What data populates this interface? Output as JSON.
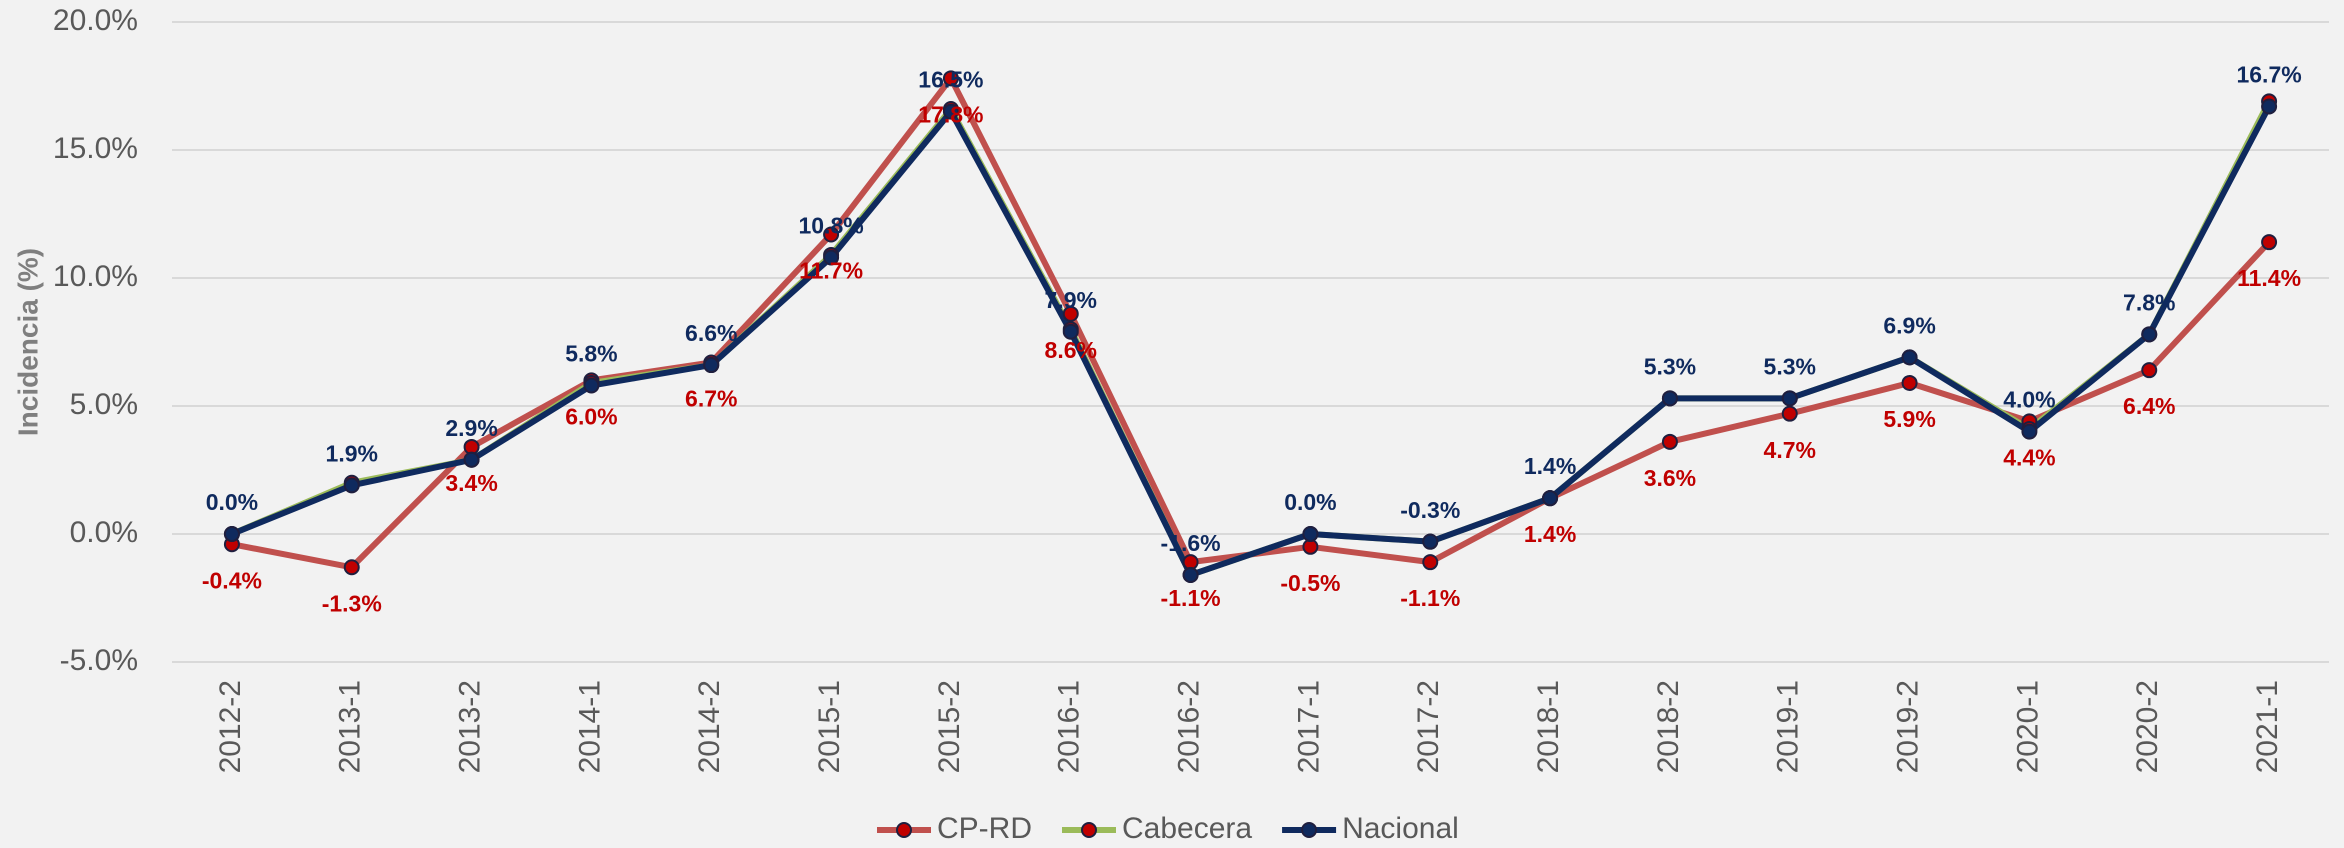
{
  "chart_data": {
    "type": "line",
    "y_label": "Incidencia (%)",
    "categories": [
      "2012-2",
      "2013-1",
      "2013-2",
      "2014-1",
      "2014-2",
      "2015-1",
      "2015-2",
      "2016-1",
      "2016-2",
      "2017-1",
      "2017-2",
      "2018-1",
      "2018-2",
      "2019-1",
      "2019-2",
      "2020-1",
      "2020-2",
      "2021-1"
    ],
    "series": [
      {
        "name": "CP-RD",
        "color": "#c0504d",
        "marker_color": "#c00000",
        "values": [
          -0.4,
          -1.3,
          3.4,
          6.0,
          6.7,
          11.7,
          17.8,
          8.6,
          -1.1,
          -0.5,
          -1.1,
          1.4,
          3.6,
          4.7,
          5.9,
          4.4,
          6.4,
          11.4
        ],
        "value_labels": [
          "-0.4%",
          "-1.3%",
          "3.4%",
          "6.0%",
          "6.7%",
          "11.7%",
          "17.8%",
          "8.6%",
          "-1.1%",
          "-0.5%",
          "-1.1%",
          "1.4%",
          "3.6%",
          "4.7%",
          "5.9%",
          "4.4%",
          "6.4%",
          "11.4%"
        ],
        "label_color": "#c00000",
        "label_position": "below"
      },
      {
        "name": "Cabecera",
        "color": "#9bbb59",
        "marker_color": "#c00000",
        "values": [
          0.0,
          2.0,
          2.9,
          5.9,
          6.6,
          10.9,
          16.6,
          8.0,
          -1.6,
          0.0,
          -0.3,
          1.4,
          5.3,
          5.3,
          6.9,
          4.1,
          7.8,
          16.9
        ]
      },
      {
        "name": "Nacional",
        "color": "#0f2a5e",
        "marker_color": "#0f2a5e",
        "values": [
          0.0,
          1.9,
          2.9,
          5.8,
          6.6,
          10.8,
          16.5,
          7.9,
          -1.6,
          0.0,
          -0.3,
          1.4,
          5.3,
          5.3,
          6.9,
          4.0,
          7.8,
          16.7
        ],
        "value_labels": [
          "0.0%",
          "1.9%",
          "2.9%",
          "5.8%",
          "6.6%",
          "10.8%",
          "16.5%",
          "7.9%",
          "-1.6%",
          "0.0%",
          "-0.3%",
          "1.4%",
          "5.3%",
          "5.3%",
          "6.9%",
          "4.0%",
          "7.8%",
          "16.7%"
        ],
        "label_color": "#0f2a5e",
        "label_position": "above"
      }
    ],
    "ylim": [
      -5,
      20
    ],
    "yticks": [
      {
        "value": -5,
        "label": "-5.0%"
      },
      {
        "value": 0,
        "label": "0.0%"
      },
      {
        "value": 5,
        "label": "5.0%"
      },
      {
        "value": 10,
        "label": "10.0%"
      },
      {
        "value": 15,
        "label": "15.0%"
      },
      {
        "value": 20,
        "label": "20.0%"
      }
    ],
    "grid": true,
    "legend": "bottom"
  }
}
